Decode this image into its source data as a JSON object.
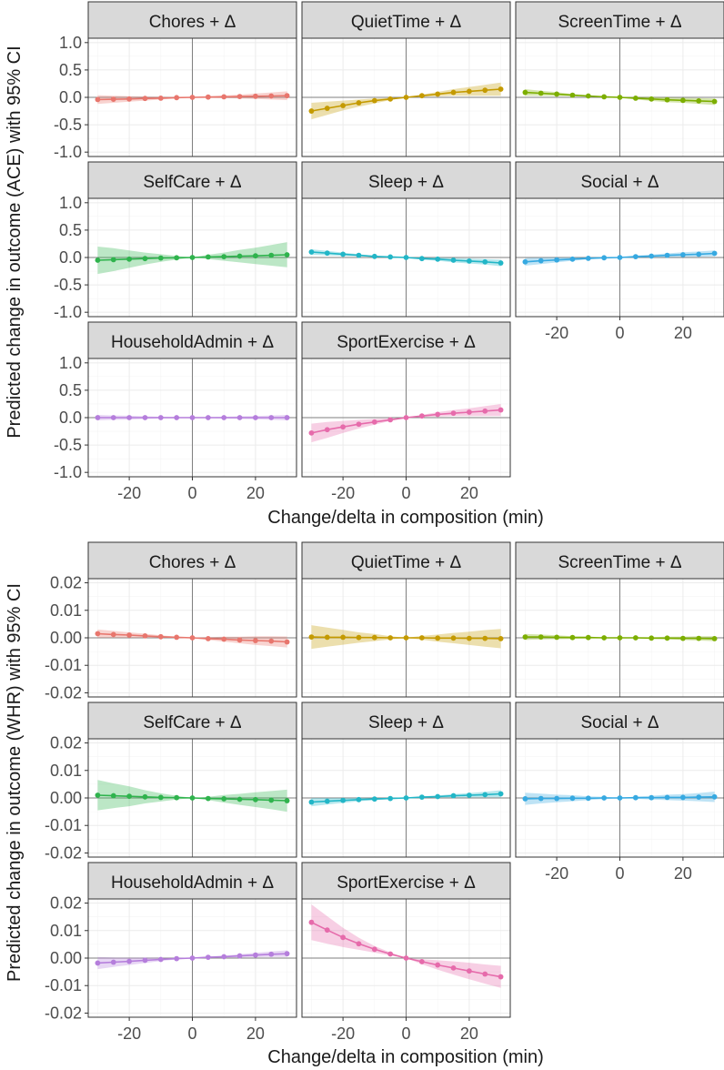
{
  "chart_data": [
    {
      "type": "line",
      "ylabel": "Predicted change in outcome (ACE) with 95% CI",
      "xlabel": "Change/delta in composition (min)",
      "xlim": [
        -33,
        33
      ],
      "ylim": [
        -1.08,
        1.08
      ],
      "x_ticks": [
        -20,
        0,
        20
      ],
      "x_tick_labels": [
        "-20",
        "0",
        "20"
      ],
      "y_ticks": [
        -1.0,
        -0.5,
        0.0,
        0.5,
        1.0
      ],
      "y_tick_labels": [
        "-1.0",
        "-0.5",
        "0.0",
        "0.5",
        "1.0"
      ],
      "x": [
        -30,
        -25,
        -20,
        -15,
        -10,
        -5,
        0,
        5,
        10,
        15,
        20,
        25,
        30
      ],
      "panels": [
        {
          "label": "Chores + Δ",
          "color": "#e8766d",
          "values": [
            -0.04,
            -0.035,
            -0.03,
            -0.02,
            -0.015,
            -0.005,
            0,
            0.005,
            0.01,
            0.015,
            0.02,
            0.025,
            0.03
          ],
          "lower": [
            -0.12,
            -0.1,
            -0.08,
            -0.06,
            -0.04,
            -0.02,
            0,
            -0.01,
            -0.015,
            -0.02,
            -0.03,
            -0.04,
            -0.05
          ],
          "upper": [
            0.04,
            0.03,
            0.02,
            0.015,
            0.01,
            0.005,
            0,
            0.02,
            0.035,
            0.05,
            0.07,
            0.09,
            0.11
          ]
        },
        {
          "label": "QuietTime + Δ",
          "color": "#c49a00",
          "values": [
            -0.25,
            -0.2,
            -0.15,
            -0.1,
            -0.06,
            -0.03,
            0,
            0.03,
            0.06,
            0.09,
            0.11,
            0.13,
            0.15
          ],
          "lower": [
            -0.4,
            -0.32,
            -0.24,
            -0.17,
            -0.11,
            -0.05,
            0,
            0.01,
            0.02,
            0.03,
            0.03,
            0.03,
            0.03
          ],
          "upper": [
            -0.1,
            -0.08,
            -0.06,
            -0.04,
            -0.02,
            -0.01,
            0,
            0.05,
            0.1,
            0.15,
            0.19,
            0.23,
            0.27
          ]
        },
        {
          "label": "ScreenTime + Δ",
          "color": "#7cae00",
          "values": [
            0.09,
            0.075,
            0.06,
            0.04,
            0.025,
            0.01,
            0,
            -0.015,
            -0.03,
            -0.045,
            -0.055,
            -0.065,
            -0.075
          ],
          "lower": [
            0.03,
            0.03,
            0.025,
            0.02,
            0.01,
            0.005,
            0,
            -0.04,
            -0.065,
            -0.09,
            -0.1,
            -0.12,
            -0.14
          ],
          "upper": [
            0.15,
            0.12,
            0.095,
            0.06,
            0.04,
            0.015,
            0,
            0.01,
            0.005,
            0.0,
            -0.01,
            -0.015,
            -0.02
          ]
        },
        {
          "label": "SelfCare + Δ",
          "color": "#2fb34d",
          "values": [
            -0.05,
            -0.04,
            -0.03,
            -0.02,
            -0.01,
            -0.005,
            0,
            0.01,
            0.015,
            0.025,
            0.03,
            0.04,
            0.05
          ],
          "lower": [
            -0.3,
            -0.25,
            -0.19,
            -0.13,
            -0.08,
            -0.04,
            0,
            -0.03,
            -0.06,
            -0.09,
            -0.12,
            -0.15,
            -0.18
          ],
          "upper": [
            0.2,
            0.17,
            0.13,
            0.09,
            0.06,
            0.03,
            0,
            0.05,
            0.09,
            0.14,
            0.18,
            0.23,
            0.28
          ]
        },
        {
          "label": "Sleep + Δ",
          "color": "#22b6c7",
          "values": [
            0.1,
            0.08,
            0.06,
            0.04,
            0.02,
            0.01,
            0,
            -0.02,
            -0.03,
            -0.05,
            -0.065,
            -0.08,
            -0.1
          ],
          "lower": [
            0.05,
            0.04,
            0.03,
            0.02,
            0.01,
            0.005,
            0,
            -0.04,
            -0.06,
            -0.09,
            -0.11,
            -0.13,
            -0.16
          ],
          "upper": [
            0.15,
            0.12,
            0.09,
            0.06,
            0.03,
            0.015,
            0,
            0.0,
            0.0,
            -0.01,
            -0.02,
            -0.03,
            -0.04
          ]
        },
        {
          "label": "Social + Δ",
          "color": "#36a9e1",
          "values": [
            -0.08,
            -0.06,
            -0.045,
            -0.03,
            -0.015,
            -0.005,
            0,
            0.015,
            0.025,
            0.04,
            0.05,
            0.06,
            0.075
          ],
          "lower": [
            -0.15,
            -0.12,
            -0.09,
            -0.06,
            -0.035,
            -0.015,
            0,
            -0.005,
            0.0,
            0.005,
            0.01,
            0.015,
            0.02
          ],
          "upper": [
            -0.01,
            -0.005,
            0.0,
            0.0,
            0.005,
            0.005,
            0,
            0.035,
            0.055,
            0.075,
            0.095,
            0.11,
            0.13
          ]
        },
        {
          "label": "HouseholdAdmin + Δ",
          "color": "#b57edc",
          "values": [
            0,
            0,
            0,
            0,
            0,
            0,
            0,
            0,
            0,
            0,
            0,
            0,
            0
          ],
          "lower": [
            -0.05,
            -0.04,
            -0.035,
            -0.025,
            -0.015,
            -0.01,
            0,
            -0.01,
            -0.015,
            -0.025,
            -0.03,
            -0.04,
            -0.05
          ],
          "upper": [
            0.05,
            0.04,
            0.035,
            0.025,
            0.015,
            0.01,
            0,
            0.01,
            0.015,
            0.025,
            0.03,
            0.04,
            0.05
          ]
        },
        {
          "label": "SportExercise + Δ",
          "color": "#e66bab",
          "values": [
            -0.28,
            -0.22,
            -0.17,
            -0.12,
            -0.08,
            -0.04,
            0,
            0.03,
            0.06,
            0.08,
            0.1,
            0.12,
            0.14
          ],
          "lower": [
            -0.45,
            -0.37,
            -0.28,
            -0.2,
            -0.13,
            -0.06,
            0,
            0.01,
            0.02,
            0.03,
            0.03,
            0.03,
            0.03
          ],
          "upper": [
            -0.11,
            -0.08,
            -0.06,
            -0.04,
            -0.025,
            -0.015,
            0,
            0.05,
            0.1,
            0.14,
            0.17,
            0.21,
            0.25
          ]
        }
      ]
    },
    {
      "type": "line",
      "ylabel": "Predicted change in outcome (WHR) with 95% CI",
      "xlabel": "Change/delta in composition (min)",
      "xlim": [
        -33,
        33
      ],
      "ylim": [
        -0.0215,
        0.0215
      ],
      "x_ticks": [
        -20,
        0,
        20
      ],
      "x_tick_labels": [
        "-20",
        "0",
        "20"
      ],
      "y_ticks": [
        -0.02,
        -0.01,
        0.0,
        0.01,
        0.02
      ],
      "y_tick_labels": [
        "-0.02",
        "-0.01",
        "0.00",
        "0.01",
        "0.02"
      ],
      "x": [
        -30,
        -25,
        -20,
        -15,
        -10,
        -5,
        0,
        5,
        10,
        15,
        20,
        25,
        30
      ],
      "panels": [
        {
          "label": "Chores + Δ",
          "color": "#e8766d",
          "values": [
            0.0015,
            0.0012,
            0.001,
            0.0007,
            0.0004,
            0.0002,
            0,
            -0.0003,
            -0.0005,
            -0.0008,
            -0.001,
            -0.0012,
            -0.0015
          ],
          "lower": [
            0.0,
            0.0,
            0.0,
            0.0,
            0.0,
            0.0,
            0,
            -0.0008,
            -0.0014,
            -0.002,
            -0.0026,
            -0.003,
            -0.0035
          ],
          "upper": [
            0.003,
            0.0025,
            0.002,
            0.0015,
            0.0009,
            0.0004,
            0,
            0.0002,
            0.0004,
            0.0004,
            0.0006,
            0.0006,
            0.0005
          ]
        },
        {
          "label": "QuietTime + Δ",
          "color": "#c49a00",
          "values": [
            0.0003,
            0.0002,
            0.0002,
            0.0001,
            0.0001,
            0,
            0,
            0,
            -0.0001,
            -0.0001,
            -0.0002,
            -0.0002,
            -0.0003
          ],
          "lower": [
            -0.004,
            -0.0032,
            -0.0025,
            -0.0018,
            -0.0012,
            -0.0006,
            0,
            -0.0007,
            -0.0014,
            -0.002,
            -0.0026,
            -0.0032,
            -0.0038
          ],
          "upper": [
            0.0046,
            0.0037,
            0.0029,
            0.002,
            0.0014,
            0.0006,
            0,
            0.0007,
            0.0012,
            0.0018,
            0.0022,
            0.0028,
            0.0032
          ]
        },
        {
          "label": "ScreenTime + Δ",
          "color": "#7cae00",
          "values": [
            0.0003,
            0.0003,
            0.0002,
            0.0001,
            0.0001,
            0,
            0,
            0,
            -0.0001,
            -0.0001,
            -0.0002,
            -0.0002,
            -0.0003
          ],
          "lower": [
            -0.0008,
            -0.0006,
            -0.0005,
            -0.0004,
            -0.0003,
            -0.0001,
            0,
            -0.0002,
            -0.0004,
            -0.0006,
            -0.0008,
            -0.001,
            -0.0012
          ],
          "upper": [
            0.0014,
            0.0012,
            0.0009,
            0.0006,
            0.0005,
            0.0001,
            0,
            0.0002,
            0.0002,
            0.0004,
            0.0004,
            0.0006,
            0.0006
          ]
        },
        {
          "label": "SelfCare + Δ",
          "color": "#2fb34d",
          "values": [
            0.001,
            0.0008,
            0.0006,
            0.0004,
            0.0002,
            0.0001,
            0,
            -0.0002,
            -0.0003,
            -0.0005,
            -0.0006,
            -0.0008,
            -0.001
          ],
          "lower": [
            -0.0045,
            -0.0037,
            -0.003,
            -0.002,
            -0.0013,
            -0.0006,
            0,
            -0.0008,
            -0.0017,
            -0.0025,
            -0.0033,
            -0.0041,
            -0.005
          ],
          "upper": [
            0.0065,
            0.0053,
            0.0042,
            0.0028,
            0.0017,
            0.0008,
            0,
            0.0004,
            0.0011,
            0.0015,
            0.0021,
            0.0025,
            0.003
          ]
        },
        {
          "label": "Sleep + Δ",
          "color": "#22b6c7",
          "values": [
            -0.0015,
            -0.0012,
            -0.0009,
            -0.0006,
            -0.0004,
            -0.0002,
            0,
            0.0003,
            0.0005,
            0.0008,
            0.001,
            0.0012,
            0.0015
          ],
          "lower": [
            -0.003,
            -0.0024,
            -0.0018,
            -0.0012,
            -0.0008,
            -0.0004,
            0,
            0.0,
            0.0001,
            0.0002,
            0.0002,
            0.0002,
            0.0002
          ],
          "upper": [
            0.0,
            0.0,
            0.0,
            0.0,
            0.0,
            0.0,
            0,
            0.0006,
            0.0009,
            0.0014,
            0.0018,
            0.0022,
            0.0028
          ]
        },
        {
          "label": "Social + Δ",
          "color": "#36a9e1",
          "values": [
            -0.0003,
            -0.0002,
            -0.0002,
            -0.0001,
            -0.0001,
            0,
            0,
            0.0001,
            0.0001,
            0.0002,
            0.0002,
            0.0003,
            0.0004
          ],
          "lower": [
            -0.0025,
            -0.002,
            -0.0016,
            -0.0012,
            -0.0008,
            -0.0004,
            0,
            -0.0003,
            -0.0006,
            -0.0008,
            -0.001,
            -0.0012,
            -0.0015
          ],
          "upper": [
            0.0019,
            0.0016,
            0.0012,
            0.001,
            0.0006,
            0.0004,
            0,
            0.0005,
            0.0008,
            0.0012,
            0.0014,
            0.0018,
            0.0023
          ]
        },
        {
          "label": "HouseholdAdmin + Δ",
          "color": "#b57edc",
          "values": [
            -0.0018,
            -0.0015,
            -0.0012,
            -0.0008,
            -0.0005,
            -0.0002,
            0,
            0.0003,
            0.0005,
            0.0008,
            0.0011,
            0.0014,
            0.0016
          ],
          "lower": [
            -0.004,
            -0.0032,
            -0.0025,
            -0.0018,
            -0.0011,
            -0.0005,
            0,
            0.0,
            0.0001,
            0.0002,
            0.0003,
            0.0004,
            0.0004
          ],
          "upper": [
            0.0004,
            0.0002,
            0.0001,
            0.0002,
            0.0001,
            0.0001,
            0,
            0.0006,
            0.0009,
            0.0014,
            0.0019,
            0.0024,
            0.0028
          ]
        },
        {
          "label": "SportExercise + Δ",
          "color": "#e66bab",
          "values": [
            0.013,
            0.0102,
            0.0075,
            0.0052,
            0.0032,
            0.0015,
            0,
            -0.0013,
            -0.0025,
            -0.0036,
            -0.0047,
            -0.0058,
            -0.0068
          ],
          "lower": [
            0.0065,
            0.0052,
            0.004,
            0.003,
            0.002,
            0.0009,
            0,
            -0.0022,
            -0.0042,
            -0.006,
            -0.0077,
            -0.0093,
            -0.0108
          ],
          "upper": [
            0.0195,
            0.0152,
            0.011,
            0.0074,
            0.0044,
            0.0021,
            0,
            -0.0004,
            -0.0008,
            -0.0012,
            -0.0017,
            -0.0023,
            -0.0028
          ]
        }
      ]
    }
  ]
}
